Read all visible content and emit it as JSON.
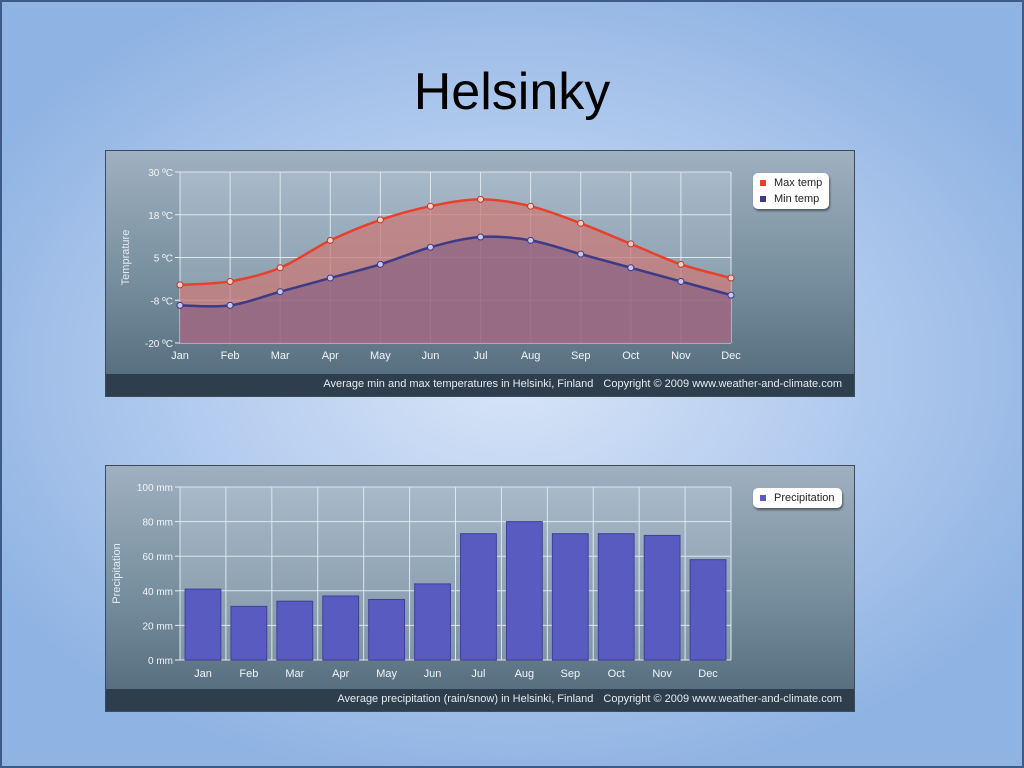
{
  "slide": {
    "title": "Helsinky"
  },
  "chart_data": [
    {
      "type": "area",
      "categories": [
        "Jan",
        "Feb",
        "Mar",
        "Apr",
        "May",
        "Jun",
        "Jul",
        "Aug",
        "Sep",
        "Oct",
        "Nov",
        "Dec"
      ],
      "series": [
        {
          "name": "Max temp",
          "color": "#e8402a",
          "values": [
            -3,
            -2,
            2,
            10,
            16,
            20,
            22,
            20,
            15,
            9,
            3,
            -1
          ]
        },
        {
          "name": "Min temp",
          "color": "#3e3a86",
          "values": [
            -9,
            -9,
            -5,
            -1,
            3,
            8,
            11,
            10,
            6,
            2,
            -2,
            -6
          ]
        }
      ],
      "ylabel": "Temprature",
      "yticks": [
        "30 ºC",
        "18 ºC",
        "5 ºC",
        "-8 ºC",
        "-20 ºC"
      ],
      "ylim": [
        -20,
        30
      ],
      "caption": "Average min and max temperatures in Helsinki, Finland",
      "copyright": "Copyright © 2009 www.weather-and-climate.com",
      "grid": true,
      "legend_position": "top-right"
    },
    {
      "type": "bar",
      "categories": [
        "Jan",
        "Feb",
        "Mar",
        "Apr",
        "May",
        "Jun",
        "Jul",
        "Aug",
        "Sep",
        "Oct",
        "Nov",
        "Dec"
      ],
      "series": [
        {
          "name": "Precipitation",
          "color": "#5a5bc0",
          "values": [
            41,
            31,
            34,
            37,
            35,
            44,
            73,
            80,
            73,
            73,
            72,
            58
          ]
        }
      ],
      "ylabel": "Precipitation",
      "yticks": [
        "100 mm",
        "80 mm",
        "60 mm",
        "40 mm",
        "20 mm",
        "0 mm"
      ],
      "ylim": [
        0,
        100
      ],
      "caption": "Average precipitation (rain/snow) in Helsinki, Finland",
      "copyright": "Copyright © 2009 www.weather-and-climate.com",
      "grid": true,
      "legend_position": "top-right"
    }
  ]
}
